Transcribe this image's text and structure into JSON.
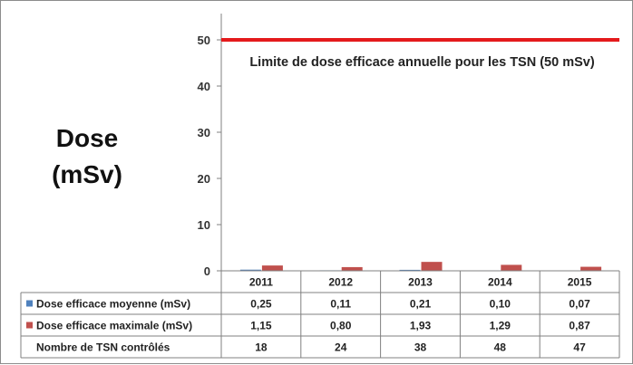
{
  "chart_data": {
    "type": "bar",
    "ylabel_lines": [
      "Dose",
      "(mSv)"
    ],
    "ylim": [
      0,
      50
    ],
    "yticks": [
      0,
      10,
      20,
      30,
      40,
      50
    ],
    "grid": false,
    "categories": [
      "2011",
      "2012",
      "2013",
      "2014",
      "2015"
    ],
    "series": [
      {
        "name": "Dose efficace moyenne (mSv)",
        "color": "#4f81bd",
        "values": [
          0.25,
          0.11,
          0.21,
          0.1,
          0.07
        ],
        "labels": [
          "0,25",
          "0,11",
          "0,21",
          "0,10",
          "0,07"
        ]
      },
      {
        "name": "Dose efficace maximale (mSv)",
        "color": "#c0504d",
        "values": [
          1.15,
          0.8,
          1.93,
          1.29,
          0.87
        ],
        "labels": [
          "1,15",
          "0,80",
          "1,93",
          "1,29",
          "0,87"
        ]
      }
    ],
    "table_rows": [
      {
        "label": "Nombre de TSN contrôlés",
        "values": [
          "18",
          "24",
          "38",
          "48",
          "47"
        ]
      }
    ],
    "reference_line": {
      "value": 50,
      "color": "#e41a1c",
      "label": "Limite de dose efficace annuelle pour les TSN (50 mSv)"
    },
    "legend_placement": "data-table"
  }
}
